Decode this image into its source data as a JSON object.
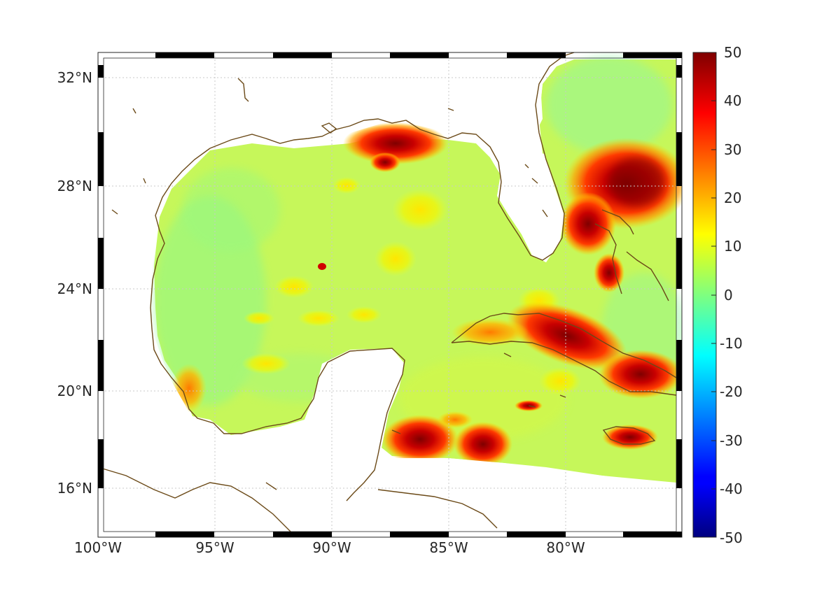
{
  "map": {
    "lon_labels": [
      "100°W",
      "95°W",
      "90°W",
      "85°W",
      "80°W"
    ],
    "lat_labels": [
      "16°N",
      "20°N",
      "24°N",
      "28°N",
      "32°N"
    ],
    "lon_range": [
      -100,
      -75
    ],
    "lat_range": [
      14.5,
      33
    ],
    "grid": true,
    "coastline_color": "#6b4a18",
    "land_color": "#ffffff"
  },
  "colorbar": {
    "ticks": [
      "50",
      "40",
      "30",
      "20",
      "10",
      "0",
      "-10",
      "-20",
      "-30",
      "-40",
      "-50"
    ],
    "min": -50,
    "max": 50,
    "colormap": "jet",
    "placement": "right"
  }
}
